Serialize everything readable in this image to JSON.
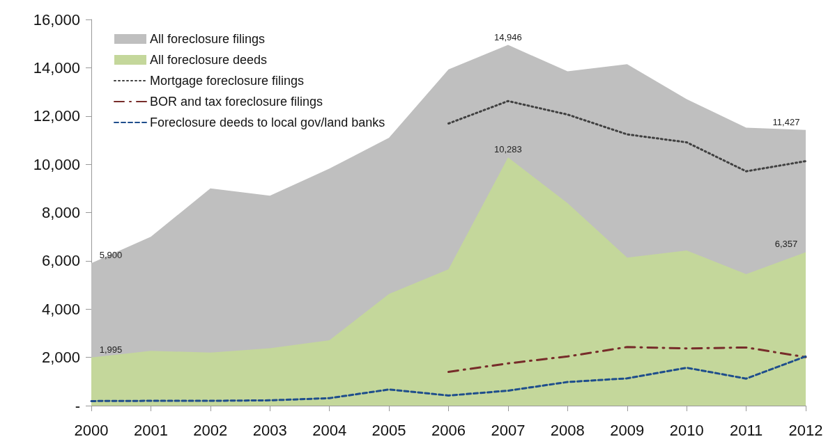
{
  "chart_data": {
    "type": "area",
    "categories": [
      "2000",
      "2001",
      "2002",
      "2003",
      "2004",
      "2005",
      "2006",
      "2007",
      "2008",
      "2009",
      "2010",
      "2011",
      "2012"
    ],
    "ylim": [
      0,
      16000
    ],
    "yticks": [
      {
        "value": 0,
        "label": "-"
      },
      {
        "value": 2000,
        "label": "2,000"
      },
      {
        "value": 4000,
        "label": "4,000"
      },
      {
        "value": 6000,
        "label": "6,000"
      },
      {
        "value": 8000,
        "label": "8,000"
      },
      {
        "value": 10000,
        "label": "10,000"
      },
      {
        "value": 12000,
        "label": "12,000"
      },
      {
        "value": 14000,
        "label": "14,000"
      },
      {
        "value": 16000,
        "label": "16,000"
      }
    ],
    "grid": false,
    "legend": "top left",
    "marker": "none",
    "series": [
      {
        "name": "All foreclosure filings",
        "color": "#bfbfbf",
        "values": [
          5900,
          7000,
          9000,
          8700,
          9820,
          11100,
          13930,
          14946,
          13850,
          14150,
          12700,
          11520,
          11427
        ],
        "value_labels": [
          "5,900",
          null,
          null,
          null,
          null,
          null,
          null,
          "14,946",
          null,
          null,
          null,
          null,
          "11,427"
        ]
      },
      {
        "name": "All foreclosure deeds",
        "color": "#c4d79b",
        "values": [
          1995,
          2270,
          2200,
          2380,
          2710,
          4630,
          5650,
          10283,
          8390,
          6130,
          6430,
          5450,
          6357
        ],
        "value_labels": [
          "1,995",
          null,
          null,
          null,
          null,
          null,
          null,
          "10,283",
          null,
          null,
          null,
          null,
          "6,357"
        ]
      },
      {
        "name": "Mortgage foreclosure filings",
        "type": "line",
        "color": "#404040",
        "line_style": "dotted",
        "values": [
          null,
          null,
          null,
          null,
          null,
          null,
          11690,
          12620,
          12060,
          11240,
          10910,
          9710,
          10130
        ]
      },
      {
        "name": "BOR and tax foreclosure filings",
        "type": "line",
        "color": "#772c2a",
        "line_style": "dashdot",
        "values": [
          null,
          null,
          null,
          null,
          null,
          null,
          1400,
          1750,
          2040,
          2430,
          2370,
          2410,
          2010
        ]
      },
      {
        "name": "Foreclosure deeds to local gov/land banks",
        "type": "line",
        "color": "#1f4e8c",
        "line_style": "dashed",
        "values": [
          190,
          200,
          200,
          220,
          310,
          670,
          420,
          620,
          980,
          1130,
          1570,
          1120,
          2040
        ]
      }
    ]
  }
}
